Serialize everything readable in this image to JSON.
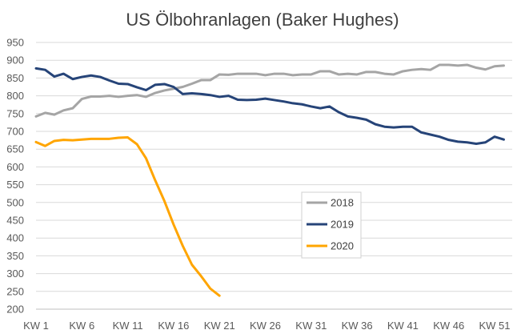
{
  "chart_data": {
    "type": "line",
    "title": "US Ölbohranlagen (Baker Hughes)",
    "xlabel": "",
    "ylabel": "",
    "ylim": [
      200,
      950
    ],
    "y_ticks": [
      200,
      250,
      300,
      350,
      400,
      450,
      500,
      550,
      600,
      650,
      700,
      750,
      800,
      850,
      900,
      950
    ],
    "x_range": [
      1,
      52
    ],
    "x_tick_labels": [
      "KW 1",
      "KW 6",
      "KW 11",
      "KW 16",
      "KW 21",
      "KW 26",
      "KW 31",
      "KW 36",
      "KW 41",
      "KW 46",
      "KW 51"
    ],
    "x_tick_weeks": [
      1,
      6,
      11,
      16,
      21,
      26,
      31,
      36,
      41,
      46,
      51
    ],
    "grid": true,
    "legend_position": "center-right",
    "series": [
      {
        "name": "2018",
        "color": "#a5a5a5",
        "values": [
          742,
          752,
          747,
          759,
          765,
          791,
          798,
          798,
          800,
          797,
          800,
          802,
          797,
          808,
          815,
          820,
          825,
          834,
          844,
          844,
          860,
          859,
          862,
          862,
          862,
          858,
          862,
          862,
          858,
          860,
          860,
          869,
          869,
          860,
          862,
          860,
          867,
          867,
          862,
          860,
          869,
          873,
          875,
          873,
          887,
          887,
          885,
          887,
          879,
          874,
          883,
          885
        ]
      },
      {
        "name": "2019",
        "color": "#264478",
        "values": [
          877,
          873,
          854,
          862,
          847,
          853,
          857,
          853,
          843,
          834,
          833,
          824,
          816,
          831,
          833,
          825,
          805,
          807,
          805,
          802,
          797,
          800,
          789,
          788,
          789,
          792,
          788,
          784,
          779,
          776,
          770,
          765,
          770,
          754,
          742,
          738,
          733,
          720,
          713,
          711,
          713,
          713,
          697,
          691,
          685,
          676,
          671,
          669,
          665,
          669,
          685,
          677
        ]
      },
      {
        "name": "2020",
        "color": "#ffa500",
        "values": [
          670,
          659,
          673,
          676,
          675,
          677,
          679,
          679,
          679,
          682,
          683,
          664,
          624,
          562,
          504,
          438,
          378,
          325,
          293,
          258,
          238
        ]
      }
    ]
  }
}
